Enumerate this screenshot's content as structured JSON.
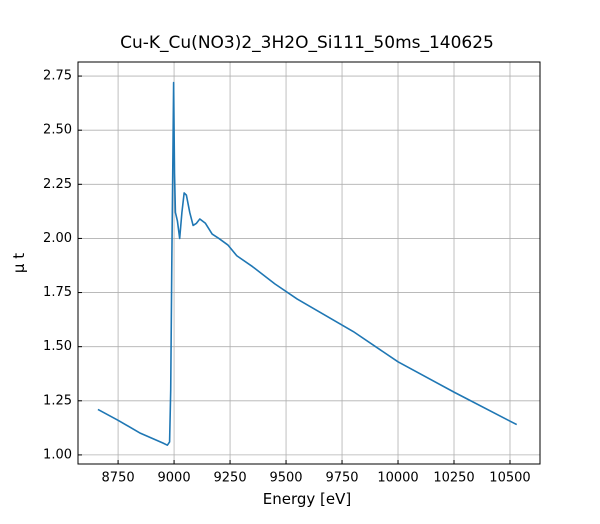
{
  "chart_data": {
    "type": "line",
    "title": "Cu-K_Cu(NO3)2_3H2O_Si111_50ms_140625",
    "xlabel": "Energy [eV]",
    "ylabel": "μ t",
    "x": [
      8660,
      8750,
      8850,
      8950,
      8970,
      8980,
      8985,
      8990,
      8995,
      8998,
      9002,
      9006,
      9015,
      9025,
      9035,
      9045,
      9055,
      9070,
      9085,
      9100,
      9115,
      9140,
      9170,
      9200,
      9240,
      9280,
      9350,
      9450,
      9550,
      9650,
      9800,
      10000,
      10250,
      10530
    ],
    "series": [
      {
        "color": "#1f77b4",
        "values": [
          1.21,
          1.16,
          1.1,
          1.055,
          1.045,
          1.06,
          1.3,
          1.9,
          2.4,
          2.72,
          2.3,
          2.12,
          2.08,
          2.0,
          2.12,
          2.21,
          2.2,
          2.12,
          2.06,
          2.07,
          2.09,
          2.07,
          2.02,
          2.0,
          1.97,
          1.92,
          1.87,
          1.79,
          1.72,
          1.66,
          1.57,
          1.43,
          1.29,
          1.14
        ]
      }
    ],
    "xlim": [
      8571,
      10634
    ],
    "ylim": [
      0.958,
      2.815
    ],
    "xticks": [
      8750,
      9000,
      9250,
      9500,
      9750,
      10000,
      10250,
      10500
    ],
    "yticks": [
      {
        "value": 1.0,
        "label": "1.00"
      },
      1.25,
      {
        "value": 1.5,
        "label": "1.50"
      },
      1.75,
      {
        "value": 2.0,
        "label": "2.00"
      },
      2.25,
      {
        "value": 2.5,
        "label": "2.50"
      },
      2.75
    ],
    "grid": true
  }
}
